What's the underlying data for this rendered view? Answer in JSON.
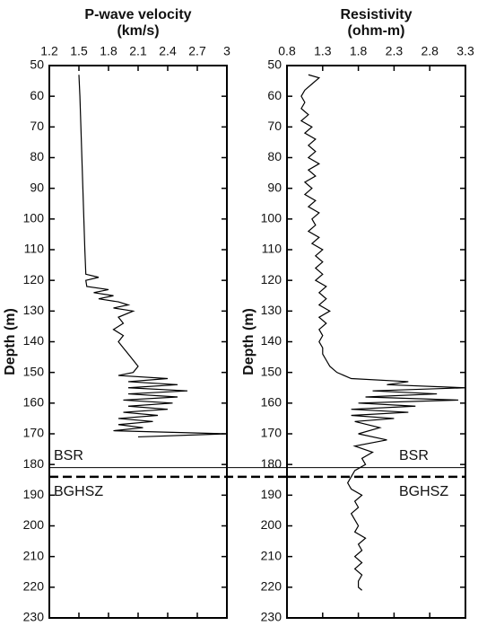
{
  "chart_data": [
    {
      "type": "line",
      "title": "P-wave velocity",
      "units": "(km/s)",
      "ylabel": "Depth (m)",
      "color": "#000000",
      "xlim": [
        1.2,
        3
      ],
      "xticks": [
        1.2,
        1.5,
        1.8,
        2.1,
        2.4,
        2.7,
        3
      ],
      "ylim": [
        50,
        230
      ],
      "yticks": [
        50,
        60,
        70,
        80,
        90,
        100,
        110,
        120,
        130,
        140,
        150,
        160,
        170,
        180,
        190,
        200,
        210,
        220,
        230
      ],
      "depth": [
        53,
        60,
        70,
        80,
        90,
        100,
        110,
        118,
        119,
        120,
        122,
        123,
        124,
        125,
        126,
        127,
        128,
        129,
        130,
        132,
        134,
        136,
        138,
        140,
        142,
        144,
        146,
        148,
        150,
        151,
        152,
        153,
        154,
        155,
        156,
        157,
        158,
        159,
        160,
        161,
        162,
        163,
        164,
        165,
        166,
        167,
        168,
        169,
        170,
        171
      ],
      "values": [
        1.5,
        1.51,
        1.52,
        1.53,
        1.54,
        1.55,
        1.56,
        1.57,
        1.7,
        1.57,
        1.58,
        1.8,
        1.65,
        1.85,
        1.7,
        1.9,
        2.0,
        1.85,
        2.05,
        1.9,
        1.95,
        1.85,
        1.95,
        1.9,
        1.95,
        2.0,
        2.05,
        2.1,
        2.05,
        1.9,
        2.4,
        2.0,
        2.5,
        2.0,
        2.6,
        2.0,
        2.5,
        1.95,
        2.45,
        2.0,
        2.4,
        1.95,
        2.3,
        1.9,
        2.25,
        1.9,
        2.15,
        1.85,
        3.0,
        2.1
      ],
      "horizons": [
        {
          "label": "BSR",
          "value": 181,
          "style": "solid"
        },
        {
          "label": "BGHSZ",
          "value": 184,
          "style": "dashed"
        }
      ]
    },
    {
      "type": "line",
      "title": "Resistivity",
      "units": "(ohm-m)",
      "ylabel": "Depth (m)",
      "color": "#000000",
      "xlim": [
        0.8,
        3.3
      ],
      "xticks": [
        0.8,
        1.3,
        1.8,
        2.3,
        2.8,
        3.3
      ],
      "ylim": [
        50,
        230
      ],
      "yticks": [
        50,
        60,
        70,
        80,
        90,
        100,
        110,
        120,
        130,
        140,
        150,
        160,
        170,
        180,
        190,
        200,
        210,
        220,
        230
      ],
      "depth": [
        53,
        54,
        56,
        58,
        60,
        62,
        64,
        66,
        68,
        70,
        72,
        74,
        76,
        78,
        80,
        82,
        84,
        86,
        88,
        90,
        92,
        94,
        96,
        98,
        100,
        102,
        104,
        106,
        108,
        110,
        112,
        114,
        116,
        118,
        120,
        122,
        124,
        126,
        128,
        130,
        132,
        134,
        136,
        138,
        140,
        142,
        144,
        146,
        148,
        150,
        152,
        153,
        154,
        155,
        156,
        157,
        158,
        159,
        160,
        161,
        162,
        163,
        164,
        165,
        166,
        168,
        170,
        172,
        174,
        176,
        178,
        180,
        182,
        184,
        186,
        188,
        190,
        192,
        194,
        196,
        198,
        200,
        202,
        204,
        206,
        208,
        210,
        212,
        214,
        216,
        218,
        220,
        221
      ],
      "values": [
        1.1,
        1.25,
        1.15,
        1.05,
        1.0,
        1.05,
        1.0,
        1.1,
        1.0,
        1.15,
        1.05,
        1.2,
        1.1,
        1.2,
        1.1,
        1.25,
        1.1,
        1.2,
        1.05,
        1.15,
        1.05,
        1.2,
        1.1,
        1.25,
        1.15,
        1.2,
        1.1,
        1.25,
        1.15,
        1.3,
        1.2,
        1.3,
        1.2,
        1.3,
        1.2,
        1.35,
        1.25,
        1.35,
        1.25,
        1.4,
        1.25,
        1.35,
        1.25,
        1.3,
        1.25,
        1.3,
        1.3,
        1.35,
        1.4,
        1.5,
        1.7,
        2.5,
        2.2,
        3.3,
        2.0,
        2.9,
        1.9,
        3.2,
        1.8,
        2.6,
        1.7,
        2.5,
        1.7,
        2.3,
        1.75,
        2.1,
        1.8,
        2.2,
        1.75,
        2.0,
        1.85,
        1.9,
        1.75,
        1.7,
        1.65,
        1.7,
        1.85,
        1.75,
        1.8,
        1.7,
        1.75,
        1.8,
        1.75,
        1.9,
        1.8,
        1.85,
        1.75,
        1.85,
        1.75,
        1.85,
        1.8,
        1.8,
        1.85
      ],
      "horizons": [
        {
          "label": "BSR",
          "value": 181,
          "style": "solid"
        },
        {
          "label": "BGHSZ",
          "value": 184,
          "style": "dashed"
        }
      ]
    }
  ]
}
